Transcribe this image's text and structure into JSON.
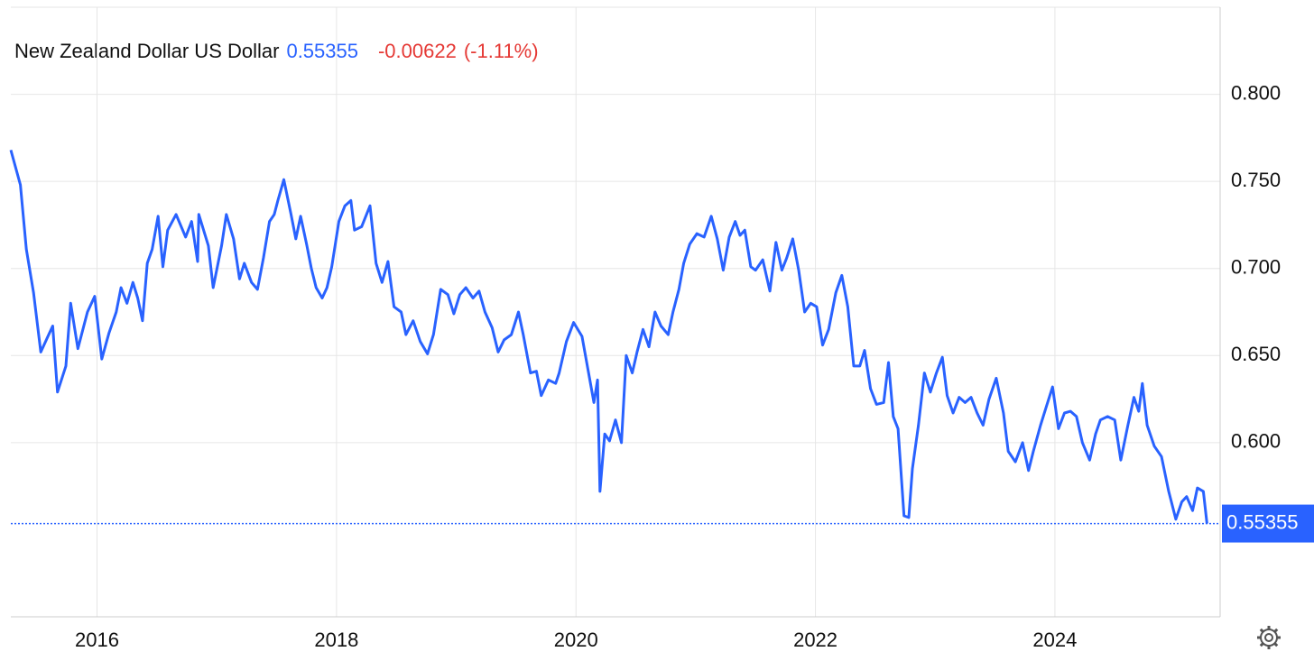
{
  "chart_data": {
    "type": "line",
    "title": "New Zealand Dollar US Dollar",
    "price": "0.55355",
    "change": "-0.00622",
    "change_pct": "(-1.11%)",
    "xlim": [
      2015.28,
      2025.38
    ],
    "xticks": [
      2016,
      2018,
      2020,
      2022,
      2024
    ],
    "ylim": [
      0.5,
      0.85
    ],
    "yticks": [
      {
        "value": 0.6,
        "label": "0.600"
      },
      {
        "value": 0.65,
        "label": "0.650"
      },
      {
        "value": 0.7,
        "label": "0.700"
      },
      {
        "value": 0.75,
        "label": "0.750"
      },
      {
        "value": 0.8,
        "label": "0.800"
      }
    ],
    "grid": true,
    "x": [
      2015.28,
      2015.36,
      2015.41,
      2015.47,
      2015.53,
      2015.59,
      2015.63,
      2015.67,
      2015.74,
      2015.78,
      2015.84,
      2015.92,
      2015.98,
      2016.04,
      2016.1,
      2016.16,
      2016.2,
      2016.25,
      2016.3,
      2016.34,
      2016.38,
      2016.42,
      2016.46,
      2016.51,
      2016.55,
      2016.59,
      2016.66,
      2016.74,
      2016.79,
      2016.84,
      2016.85,
      2016.93,
      2016.97,
      2017.04,
      2017.08,
      2017.14,
      2017.19,
      2017.23,
      2017.29,
      2017.34,
      2017.39,
      2017.44,
      2017.48,
      2017.51,
      2017.56,
      2017.62,
      2017.66,
      2017.7,
      2017.75,
      2017.79,
      2017.83,
      2017.88,
      2017.92,
      2017.96,
      2018.02,
      2018.07,
      2018.12,
      2018.15,
      2018.21,
      2018.28,
      2018.33,
      2018.38,
      2018.43,
      2018.48,
      2018.54,
      2018.58,
      2018.64,
      2018.7,
      2018.76,
      2018.81,
      2018.87,
      2018.93,
      2018.98,
      2019.03,
      2019.08,
      2019.14,
      2019.19,
      2019.24,
      2019.3,
      2019.35,
      2019.4,
      2019.46,
      2019.52,
      2019.56,
      2019.62,
      2019.67,
      2019.71,
      2019.77,
      2019.83,
      2019.86,
      2019.92,
      2019.98,
      2020.05,
      2020.1,
      2020.15,
      2020.18,
      2020.2,
      2020.24,
      2020.28,
      2020.33,
      2020.38,
      2020.42,
      2020.47,
      2020.51,
      2020.56,
      2020.61,
      2020.66,
      2020.71,
      2020.77,
      2020.81,
      2020.86,
      2020.9,
      2020.95,
      2021.01,
      2021.07,
      2021.13,
      2021.18,
      2021.23,
      2021.28,
      2021.33,
      2021.37,
      2021.41,
      2021.46,
      2021.5,
      2021.56,
      2021.62,
      2021.67,
      2021.72,
      2021.76,
      2021.81,
      2021.86,
      2021.91,
      2021.96,
      2022.01,
      2022.06,
      2022.11,
      2022.17,
      2022.22,
      2022.27,
      2022.32,
      2022.37,
      2022.41,
      2022.46,
      2022.51,
      2022.57,
      2022.61,
      2022.65,
      2022.69,
      2022.74,
      2022.78,
      2022.81,
      2022.86,
      2022.91,
      2022.96,
      2023.01,
      2023.06,
      2023.1,
      2023.15,
      2023.2,
      2023.25,
      2023.3,
      2023.35,
      2023.4,
      2023.45,
      2023.51,
      2023.57,
      2023.61,
      2023.67,
      2023.73,
      2023.78,
      2023.82,
      2023.88,
      2023.93,
      2023.98,
      2024.03,
      2024.08,
      2024.13,
      2024.18,
      2024.23,
      2024.29,
      2024.34,
      2024.38,
      2024.44,
      2024.5,
      2024.55,
      2024.61,
      2024.66,
      2024.7,
      2024.73,
      2024.77,
      2024.83,
      2024.89,
      2024.95,
      2025.01,
      2025.06,
      2025.1,
      2025.15,
      2025.19,
      2025.24,
      2025.27
    ],
    "series": [
      {
        "name": "New Zealand Dollar US Dollar",
        "color": "#2962ff",
        "values": [
          0.768,
          0.748,
          0.711,
          0.686,
          0.652,
          0.661,
          0.667,
          0.629,
          0.644,
          0.68,
          0.654,
          0.675,
          0.684,
          0.648,
          0.663,
          0.675,
          0.689,
          0.68,
          0.692,
          0.683,
          0.67,
          0.703,
          0.711,
          0.73,
          0.701,
          0.722,
          0.731,
          0.718,
          0.727,
          0.704,
          0.731,
          0.713,
          0.689,
          0.713,
          0.731,
          0.717,
          0.694,
          0.703,
          0.692,
          0.688,
          0.706,
          0.727,
          0.731,
          0.739,
          0.751,
          0.731,
          0.717,
          0.73,
          0.714,
          0.7,
          0.689,
          0.683,
          0.689,
          0.701,
          0.727,
          0.736,
          0.739,
          0.722,
          0.724,
          0.736,
          0.703,
          0.692,
          0.704,
          0.678,
          0.675,
          0.662,
          0.67,
          0.658,
          0.651,
          0.662,
          0.688,
          0.685,
          0.674,
          0.685,
          0.689,
          0.683,
          0.687,
          0.675,
          0.666,
          0.652,
          0.659,
          0.662,
          0.675,
          0.662,
          0.64,
          0.641,
          0.627,
          0.636,
          0.634,
          0.64,
          0.658,
          0.669,
          0.661,
          0.642,
          0.623,
          0.636,
          0.572,
          0.605,
          0.601,
          0.613,
          0.6,
          0.65,
          0.64,
          0.652,
          0.665,
          0.655,
          0.675,
          0.667,
          0.662,
          0.675,
          0.688,
          0.703,
          0.714,
          0.72,
          0.718,
          0.73,
          0.717,
          0.699,
          0.718,
          0.727,
          0.719,
          0.722,
          0.701,
          0.699,
          0.705,
          0.687,
          0.715,
          0.699,
          0.706,
          0.717,
          0.699,
          0.675,
          0.68,
          0.678,
          0.656,
          0.665,
          0.686,
          0.696,
          0.678,
          0.644,
          0.644,
          0.653,
          0.631,
          0.622,
          0.623,
          0.646,
          0.615,
          0.608,
          0.558,
          0.557,
          0.585,
          0.61,
          0.64,
          0.629,
          0.64,
          0.649,
          0.627,
          0.617,
          0.626,
          0.623,
          0.626,
          0.617,
          0.61,
          0.625,
          0.637,
          0.617,
          0.595,
          0.589,
          0.6,
          0.584,
          0.595,
          0.61,
          0.621,
          0.632,
          0.608,
          0.617,
          0.618,
          0.615,
          0.6,
          0.59,
          0.605,
          0.613,
          0.615,
          0.613,
          0.59,
          0.61,
          0.626,
          0.618,
          0.634,
          0.61,
          0.598,
          0.592,
          0.572,
          0.556,
          0.566,
          0.569,
          0.561,
          0.574,
          0.572,
          0.55355
        ]
      }
    ]
  }
}
